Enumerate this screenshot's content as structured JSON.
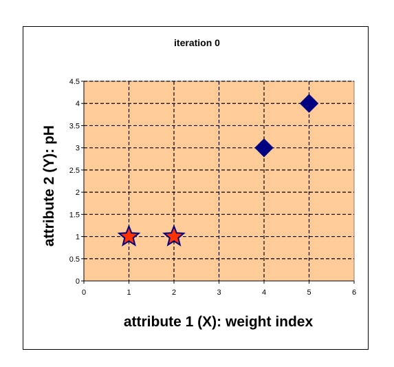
{
  "chart_data": {
    "type": "scatter",
    "title": "iteration 0",
    "xlabel": "attribute 1 (X): weight index",
    "ylabel": "attribute 2 (Y): pH",
    "xlim": [
      0,
      6
    ],
    "ylim": [
      0,
      4.5
    ],
    "x_ticks": [
      "0",
      "1",
      "2",
      "3",
      "4",
      "5",
      "6"
    ],
    "y_ticks": [
      "0",
      "0.5",
      "1",
      "1.5",
      "2",
      "2.5",
      "3",
      "3.5",
      "4",
      "4.5"
    ],
    "grid": true,
    "plot_background": "#FFCC99",
    "series": [
      {
        "marker": "star",
        "color": "#FF3300",
        "edge_color": "#000080",
        "points": [
          {
            "x": 1,
            "y": 1
          },
          {
            "x": 2,
            "y": 1
          }
        ]
      },
      {
        "marker": "diamond",
        "color": "#000080",
        "points": [
          {
            "x": 4,
            "y": 3
          },
          {
            "x": 5,
            "y": 4
          }
        ]
      }
    ]
  }
}
